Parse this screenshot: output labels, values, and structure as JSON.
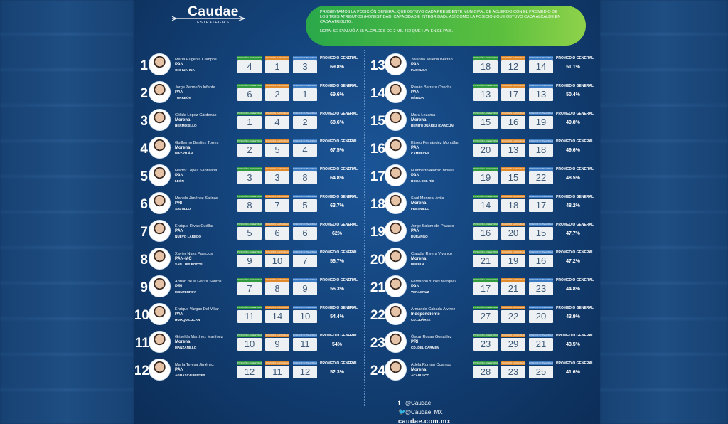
{
  "brand": {
    "name": "Caudae",
    "tagline": "ESTRATEGIAS"
  },
  "intro": {
    "text": "PRESENTAMOS LA POSICIÓN GENERAL QUE OBTUVO CADA PRESIDENTE MUNICIPAL DE ACUERDO CON EL PROMEDIO DE LOS TRES ATRIBUTOS (HONESTIDAD, CAPACIDAD E INTEGRIDAD), ASÍ COMO LA POSICIÓN QUE OBTUVO CADA ALCALDE EN CADA ATRIBUTO.",
    "note": "NOTA: SE EVALUÓ A 55 ALCALDES DE 2 MIL 462 QUE HAY EN EL PAÍS."
  },
  "labels": {
    "honestidad": "POSICIÓN HONESTIDAD",
    "capacidad": "POSICIÓN CAPACIDAD",
    "integridad": "POSICIÓN INTEGRIDAD",
    "general": "PROMEDIO GENERAL"
  },
  "mayors": [
    {
      "rank": "1",
      "name": "María Eugenia Campos",
      "party": "PAN",
      "city": "CHIHUAHUA",
      "h": "4",
      "c": "1",
      "i": "3",
      "avg": "69.8%"
    },
    {
      "rank": "2",
      "name": "Jorge Zermeño Infante",
      "party": "PAN",
      "city": "TORREÓN",
      "h": "6",
      "c": "2",
      "i": "1",
      "avg": "69.6%"
    },
    {
      "rank": "3",
      "name": "Célida López Cárdenas",
      "party": "Morena",
      "city": "HERMOSILLO",
      "h": "1",
      "c": "4",
      "i": "2",
      "avg": "68.6%"
    },
    {
      "rank": "4",
      "name": "Guillermo Benítez Torres",
      "party": "Morena",
      "city": "MAZATLÁN",
      "h": "2",
      "c": "5",
      "i": "4",
      "avg": "67.5%"
    },
    {
      "rank": "5",
      "name": "Héctor López Santillana",
      "party": "PAN",
      "city": "LEÓN",
      "h": "3",
      "c": "3",
      "i": "8",
      "avg": "64.8%"
    },
    {
      "rank": "6",
      "name": "Manolo Jiménez Salinas",
      "party": "PRI",
      "city": "SALTILLO",
      "h": "8",
      "c": "7",
      "i": "5",
      "avg": "63.7%"
    },
    {
      "rank": "7",
      "name": "Enrique Rivas Cuéllar",
      "party": "PAN",
      "city": "NUEVO LAREDO",
      "h": "5",
      "c": "6",
      "i": "6",
      "avg": "62%"
    },
    {
      "rank": "8",
      "name": "Xavier Nava Palacios",
      "party": "PAN-MC",
      "city": "SAN LUIS POTOSÍ",
      "h": "9",
      "c": "10",
      "i": "7",
      "avg": "56.7%"
    },
    {
      "rank": "9",
      "name": "Adrián de la Garza Santos",
      "party": "PRI",
      "city": "MONTERREY",
      "h": "7",
      "c": "8",
      "i": "9",
      "avg": "56.3%"
    },
    {
      "rank": "10",
      "name": "Enrique Vargas Del Villar",
      "party": "PAN",
      "city": "HUIXQUILUCAN",
      "h": "11",
      "c": "14",
      "i": "10",
      "avg": "54.4%"
    },
    {
      "rank": "11",
      "name": "Griselda Martínez Martínez",
      "party": "Morena",
      "city": "MANZANILLO",
      "h": "10",
      "c": "9",
      "i": "11",
      "avg": "54%"
    },
    {
      "rank": "12",
      "name": "María Teresa Jiménez",
      "party": "PAN",
      "city": "AGUASCALIENTES",
      "h": "12",
      "c": "11",
      "i": "12",
      "avg": "52.3%"
    },
    {
      "rank": "13",
      "name": "Yolanda Tellería Beltrán",
      "party": "PAN",
      "city": "PACHUCA",
      "h": "18",
      "c": "12",
      "i": "14",
      "avg": "51.1%"
    },
    {
      "rank": "14",
      "name": "Renán Barrera Concha",
      "party": "PAN",
      "city": "MÉRIDA",
      "h": "13",
      "c": "17",
      "i": "13",
      "avg": "50.4%"
    },
    {
      "rank": "15",
      "name": "Mara Lezama",
      "party": "Morena",
      "city": "BENITO JUÁREZ (CANCÚN)",
      "h": "15",
      "c": "16",
      "i": "19",
      "avg": "49.8%"
    },
    {
      "rank": "16",
      "name": "Eliseo Fernández Montúfar",
      "party": "PAN",
      "city": "CAMPECHE",
      "h": "20",
      "c": "13",
      "i": "18",
      "avg": "49.6%"
    },
    {
      "rank": "17",
      "name": "Humberto Alonso Morelli",
      "party": "PAN",
      "city": "BOCA DEL RÍO",
      "h": "19",
      "c": "15",
      "i": "22",
      "avg": "48.5%"
    },
    {
      "rank": "18",
      "name": "Saúl Monreal Ávila",
      "party": "Morena",
      "city": "FRESNILLO",
      "h": "14",
      "c": "18",
      "i": "17",
      "avg": "48.2%"
    },
    {
      "rank": "19",
      "name": "Jorge Salum del Palacio",
      "party": "PAN",
      "city": "DURANGO",
      "h": "16",
      "c": "20",
      "i": "15",
      "avg": "47.7%"
    },
    {
      "rank": "20",
      "name": "Claudia Rivera Vivanco",
      "party": "Morena",
      "city": "PUEBLA",
      "h": "21",
      "c": "19",
      "i": "16",
      "avg": "47.2%"
    },
    {
      "rank": "21",
      "name": "Fernando Yunes Márquez",
      "party": "PAN",
      "city": "VERACRUZ",
      "h": "17",
      "c": "21",
      "i": "23",
      "avg": "44.8%"
    },
    {
      "rank": "22",
      "name": "Armando Cabada Alvírez",
      "party": "Independiente",
      "city": "CD. JUÁREZ",
      "h": "27",
      "c": "22",
      "i": "20",
      "avg": "43.9%"
    },
    {
      "rank": "23",
      "name": "Óscar Rosas González",
      "party": "PRI",
      "city": "CD. DEL CARMEN",
      "h": "23",
      "c": "29",
      "i": "21",
      "avg": "43.5%"
    },
    {
      "rank": "24",
      "name": "Adela Román Ocampo",
      "party": "Morena",
      "city": "ACAPULCO",
      "h": "28",
      "c": "23",
      "i": "25",
      "avg": "41.6%"
    }
  ],
  "social": {
    "facebook": "@Caudae",
    "twitter": "@Caudae_MX",
    "web": "caudae.com.mx"
  },
  "colors": {
    "honestidad": "#2f9a3e",
    "capacidad": "#e08a2b",
    "integridad": "#3b7bc4",
    "banner": "#5cc03e",
    "background": "#123f74"
  }
}
